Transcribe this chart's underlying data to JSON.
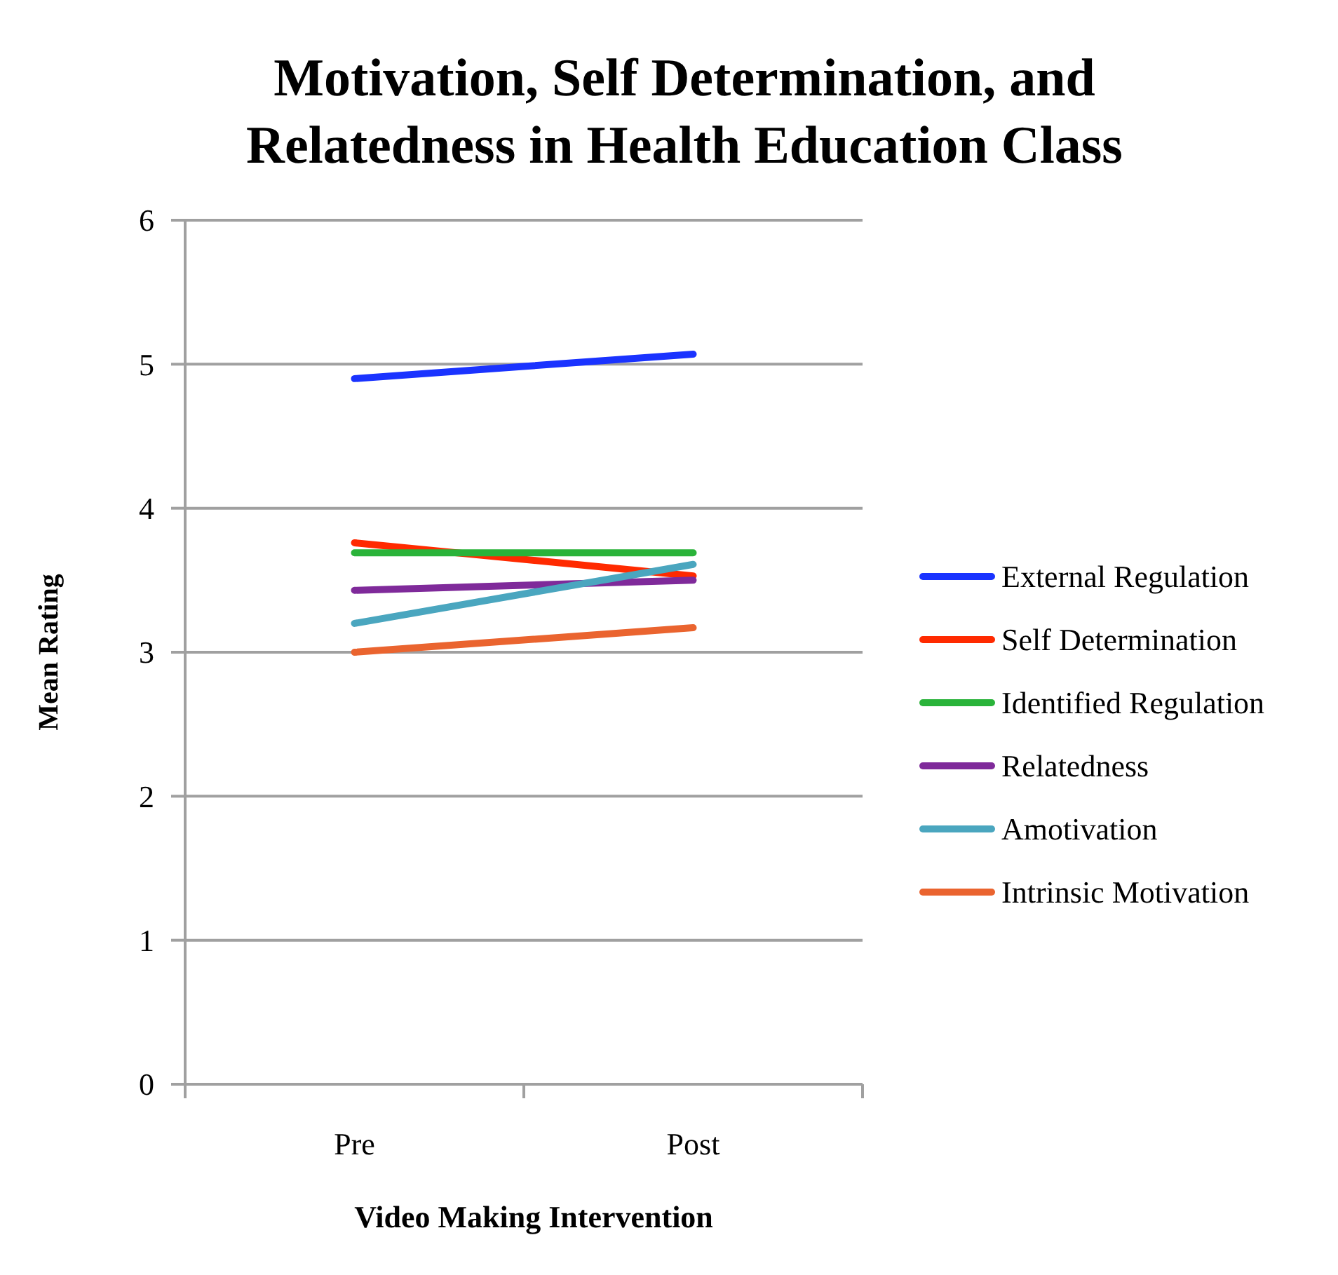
{
  "chart_data": {
    "type": "line",
    "title": "Motivation, Self Determination, and Relatedness in Health Education Class",
    "xlabel": "Video Making Intervention",
    "ylabel": "Mean Rating",
    "categories": [
      "Pre",
      "Post"
    ],
    "ylim": [
      0,
      6
    ],
    "yticks": [
      0,
      1,
      2,
      3,
      4,
      5,
      6
    ],
    "grid": "y",
    "legend": "right",
    "marker": "none",
    "series": [
      {
        "name": "External Regulation",
        "color": "#1a33ff",
        "values": [
          4.9,
          5.07
        ]
      },
      {
        "name": "Self Determination",
        "color": "#ff2a00",
        "values": [
          3.76,
          3.53
        ]
      },
      {
        "name": "Identified Regulation",
        "color": "#2ab33a",
        "values": [
          3.69,
          3.69
        ]
      },
      {
        "name": "Relatedness",
        "color": "#7f2a9a",
        "values": [
          3.43,
          3.5
        ]
      },
      {
        "name": "Amotivation",
        "color": "#4aa6bf",
        "values": [
          3.2,
          3.61
        ]
      },
      {
        "name": "Intrinsic Motivation",
        "color": "#ea642f",
        "values": [
          3.0,
          3.17
        ]
      }
    ]
  }
}
